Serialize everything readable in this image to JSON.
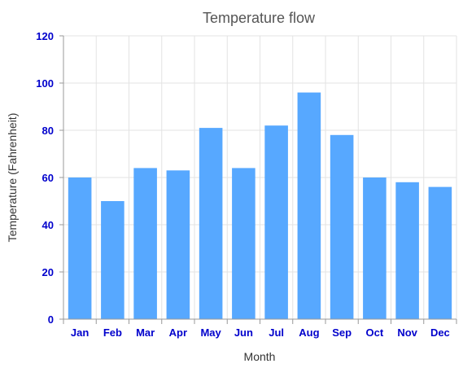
{
  "chart_data": {
    "type": "bar",
    "title": "Temperature flow",
    "xlabel": "Month",
    "ylabel": "Temperature (Fahrenheit)",
    "categories": [
      "Jan",
      "Feb",
      "Mar",
      "Apr",
      "May",
      "Jun",
      "Jul",
      "Aug",
      "Sep",
      "Oct",
      "Nov",
      "Dec"
    ],
    "values": [
      60,
      50,
      64,
      63,
      81,
      64,
      82,
      96,
      78,
      60,
      58,
      56
    ],
    "ylim": [
      0,
      120
    ],
    "yticks": [
      "0",
      "20",
      "40",
      "60",
      "80",
      "100",
      "120"
    ],
    "grid": true,
    "legend": "none",
    "colors": {
      "bar": "#57A8FF",
      "tick_label": "#0000CC",
      "grid": "#E3E3E3",
      "axis": "#999999"
    }
  }
}
